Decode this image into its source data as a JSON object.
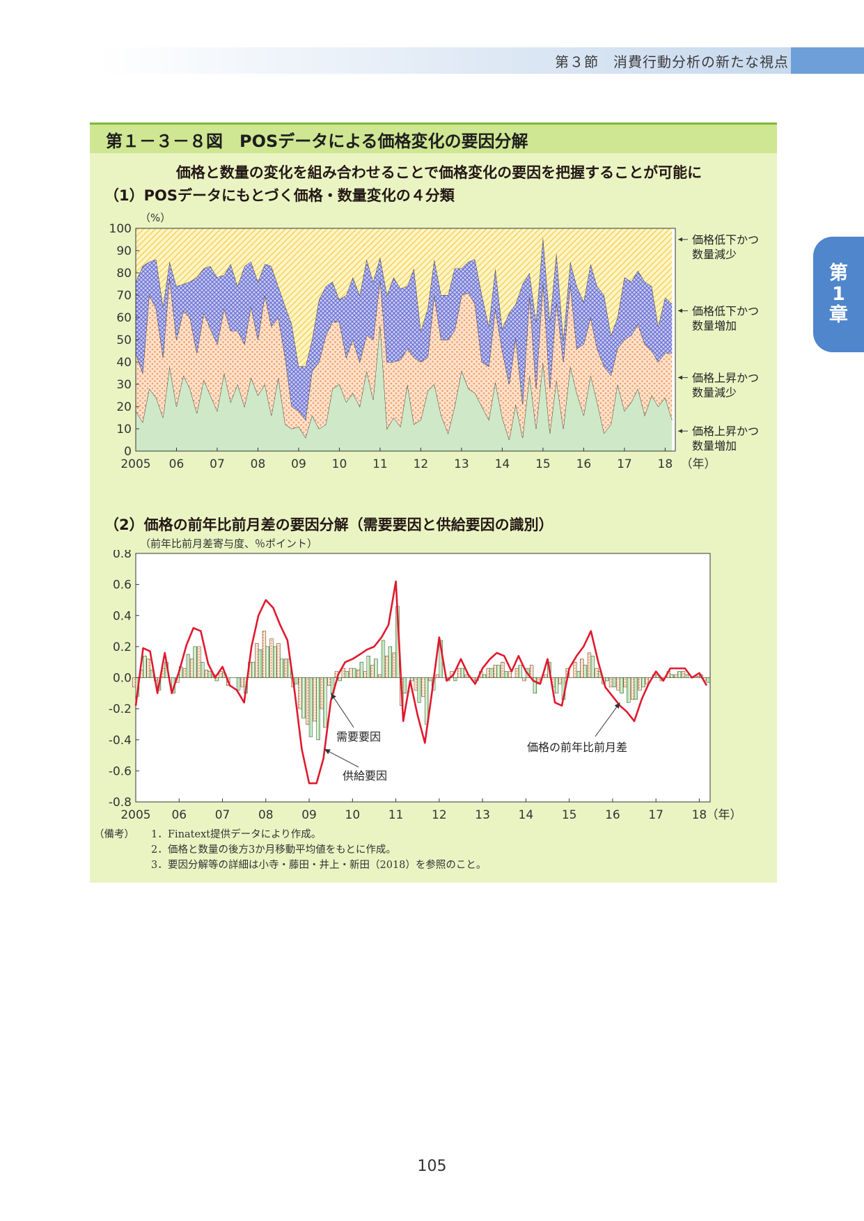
{
  "header": {
    "section": "第３節　消費行動分析の新たな視点"
  },
  "chapter_tab": {
    "line1": "第",
    "line2": "1",
    "line3": "章"
  },
  "figure": {
    "title": "第１－３－８図　POSデータによる価格変化の要因分解",
    "subtitle": "価格と数量の変化を組み合わせることで価格変化の要因を把握することが可能に"
  },
  "colors": {
    "background": "#eaf4c3",
    "title_bar": "#cfe693",
    "band_price_up_qty_up": "#cfe9c8",
    "band_price_up_qty_down": "#f3a36b",
    "band_price_down_qty_up": "#6b6fcf",
    "band_price_down_qty_down": "#f2cc4d",
    "demand_bar": "#f1a06a",
    "supply_bar": "#a8d8a0",
    "line": "#e0182d"
  },
  "chart_data": [
    {
      "type": "area",
      "section_title": "（1）POSデータにもとづく価格・数量変化の４分類",
      "ylabel": "（%）",
      "xlabel": "（年）",
      "ylim": [
        0,
        100
      ],
      "yticks": [
        "0",
        "10",
        "20",
        "30",
        "40",
        "50",
        "60",
        "70",
        "80",
        "90",
        "100"
      ],
      "xticks": [
        "2005",
        "06",
        "07",
        "08",
        "09",
        "10",
        "11",
        "12",
        "13",
        "14",
        "15",
        "16",
        "17",
        "18"
      ],
      "x_start": 2005.0,
      "x_end": 2018.25,
      "legend": [
        {
          "line1": "価格低下かつ",
          "line2": "数量減少",
          "at_value": 95
        },
        {
          "line1": "価格低下かつ",
          "line2": "数量増加",
          "at_value": 63
        },
        {
          "line1": "価格上昇かつ",
          "line2": "数量減少",
          "at_value": 33
        },
        {
          "line1": "価格上昇かつ",
          "line2": "数量増加",
          "at_value": 9
        }
      ],
      "x": [
        2005.0,
        2005.17,
        2005.33,
        2005.5,
        2005.67,
        2005.83,
        2006.0,
        2006.17,
        2006.33,
        2006.5,
        2006.67,
        2006.83,
        2007.0,
        2007.17,
        2007.33,
        2007.5,
        2007.67,
        2007.83,
        2008.0,
        2008.17,
        2008.33,
        2008.5,
        2008.67,
        2008.83,
        2009.0,
        2009.17,
        2009.33,
        2009.5,
        2009.67,
        2009.83,
        2010.0,
        2010.17,
        2010.33,
        2010.5,
        2010.67,
        2010.83,
        2011.0,
        2011.17,
        2011.33,
        2011.5,
        2011.67,
        2011.83,
        2012.0,
        2012.17,
        2012.33,
        2012.5,
        2012.67,
        2012.83,
        2013.0,
        2013.17,
        2013.33,
        2013.5,
        2013.67,
        2013.83,
        2014.0,
        2014.17,
        2014.33,
        2014.5,
        2014.67,
        2014.83,
        2015.0,
        2015.17,
        2015.33,
        2015.5,
        2015.67,
        2015.83,
        2016.0,
        2016.17,
        2016.33,
        2016.5,
        2016.67,
        2016.83,
        2017.0,
        2017.17,
        2017.33,
        2017.5,
        2017.67,
        2017.83,
        2018.0,
        2018.17
      ],
      "series": [
        {
          "name": "価格上昇かつ数量増加",
          "values": [
            18,
            13,
            28,
            24,
            15,
            38,
            20,
            34,
            28,
            17,
            32,
            25,
            18,
            35,
            22,
            30,
            20,
            33,
            25,
            30,
            16,
            33,
            12,
            10,
            11,
            6,
            16,
            10,
            12,
            28,
            30,
            22,
            26,
            20,
            36,
            23,
            57,
            10,
            15,
            11,
            30,
            12,
            14,
            27,
            30,
            16,
            8,
            20,
            36,
            28,
            26,
            20,
            14,
            31,
            15,
            5,
            21,
            6,
            34,
            10,
            40,
            8,
            32,
            10,
            38,
            26,
            16,
            34,
            22,
            8,
            12,
            30,
            18,
            22,
            28,
            16,
            25,
            20,
            24,
            14
          ]
        },
        {
          "name": "価格上昇かつ数量減少",
          "values": [
            26,
            22,
            42,
            40,
            27,
            40,
            30,
            29,
            32,
            27,
            30,
            30,
            30,
            29,
            32,
            24,
            28,
            32,
            25,
            40,
            40,
            27,
            30,
            10,
            7,
            8,
            20,
            30,
            40,
            30,
            28,
            20,
            24,
            20,
            16,
            27,
            20,
            30,
            25,
            30,
            16,
            30,
            26,
            15,
            40,
            34,
            42,
            34,
            34,
            43,
            40,
            20,
            24,
            33,
            30,
            25,
            30,
            15,
            36,
            18,
            36,
            20,
            35,
            30,
            37,
            20,
            32,
            26,
            24,
            30,
            22,
            16,
            32,
            30,
            29,
            32,
            20,
            20,
            20,
            30
          ]
        },
        {
          "name": "価格低下かつ数量増加",
          "values": [
            32,
            48,
            15,
            22,
            23,
            7,
            24,
            12,
            16,
            34,
            20,
            28,
            30,
            15,
            30,
            20,
            35,
            20,
            26,
            14,
            27,
            14,
            23,
            37,
            20,
            24,
            14,
            28,
            22,
            18,
            10,
            28,
            28,
            30,
            34,
            26,
            10,
            30,
            38,
            32,
            28,
            40,
            14,
            22,
            16,
            20,
            20,
            28,
            12,
            14,
            20,
            30,
            18,
            18,
            10,
            32,
            15,
            54,
            10,
            30,
            20,
            30,
            22,
            10,
            10,
            28,
            19,
            24,
            28,
            32,
            18,
            14,
            28,
            24,
            24,
            28,
            29,
            16,
            25,
            22
          ]
        },
        {
          "name": "価格低下かつ数量減少",
          "values": [
            24,
            17,
            15,
            14,
            35,
            15,
            26,
            25,
            24,
            22,
            18,
            17,
            22,
            21,
            16,
            26,
            17,
            15,
            24,
            16,
            17,
            26,
            35,
            43,
            62,
            62,
            50,
            32,
            26,
            24,
            32,
            30,
            22,
            30,
            14,
            24,
            13,
            30,
            22,
            27,
            26,
            18,
            46,
            36,
            14,
            30,
            30,
            18,
            18,
            15,
            14,
            30,
            44,
            18,
            45,
            38,
            34,
            25,
            20,
            42,
            4,
            42,
            11,
            50,
            15,
            26,
            33,
            16,
            26,
            30,
            48,
            40,
            22,
            24,
            19,
            24,
            26,
            44,
            31,
            34
          ]
        }
      ]
    },
    {
      "type": "bar",
      "section_title": "（2）価格の前年比前月差の要因分解（需要要因と供給要因の識別）",
      "ylabel": "（前年比前月差寄与度、％ポイント）",
      "xlabel": "（年）",
      "ylim": [
        -0.8,
        0.8
      ],
      "yticks": [
        "-0.8",
        "-0.6",
        "-0.4",
        "-0.2",
        "0.0",
        "0.2",
        "0.4",
        "0.6",
        "0.8"
      ],
      "xticks": [
        "2005",
        "06",
        "07",
        "08",
        "09",
        "10",
        "11",
        "12",
        "13",
        "14",
        "15",
        "16",
        "17",
        "18"
      ],
      "x_start": 2005.0,
      "x_end": 2018.25,
      "annotations": [
        {
          "text": "需要要因",
          "points_to": "demand"
        },
        {
          "text": "供給要因",
          "points_to": "supply"
        },
        {
          "text": "価格の前年比前月差",
          "points_to": "line"
        }
      ],
      "x": [
        2005.0,
        2005.17,
        2005.33,
        2005.5,
        2005.67,
        2005.83,
        2006.0,
        2006.17,
        2006.33,
        2006.5,
        2006.67,
        2006.83,
        2007.0,
        2007.17,
        2007.33,
        2007.5,
        2007.67,
        2007.83,
        2008.0,
        2008.17,
        2008.33,
        2008.5,
        2008.67,
        2008.83,
        2009.0,
        2009.17,
        2009.33,
        2009.5,
        2009.67,
        2009.83,
        2010.0,
        2010.17,
        2010.33,
        2010.5,
        2010.67,
        2010.83,
        2011.0,
        2011.17,
        2011.33,
        2011.5,
        2011.67,
        2011.83,
        2012.0,
        2012.17,
        2012.33,
        2012.5,
        2012.67,
        2012.83,
        2013.0,
        2013.17,
        2013.33,
        2013.5,
        2013.67,
        2013.83,
        2014.0,
        2014.17,
        2014.33,
        2014.5,
        2014.67,
        2014.83,
        2015.0,
        2015.17,
        2015.33,
        2015.5,
        2015.67,
        2015.83,
        2016.0,
        2016.17,
        2016.33,
        2016.5,
        2016.67,
        2016.83,
        2017.0,
        2017.17,
        2017.33,
        2017.5,
        2017.67,
        2017.83,
        2018.0,
        2018.17
      ],
      "series": [
        {
          "name": "需要要因",
          "values": [
            -0.06,
            0.05,
            0.12,
            -0.02,
            0.06,
            0.0,
            -0.03,
            0.06,
            0.12,
            0.2,
            0.05,
            0.02,
            0.04,
            -0.05,
            0.0,
            -0.06,
            0.1,
            0.22,
            0.3,
            0.25,
            0.22,
            0.12,
            -0.06,
            -0.2,
            -0.3,
            -0.28,
            -0.2,
            -0.05,
            0.04,
            0.06,
            0.06,
            0.05,
            0.04,
            0.08,
            0.02,
            0.14,
            0.16,
            -0.18,
            0.0,
            -0.08,
            -0.12,
            -0.02,
            0.02,
            0.0,
            0.04,
            0.06,
            0.02,
            -0.02,
            0.04,
            0.06,
            0.08,
            0.1,
            0.04,
            0.06,
            -0.02,
            0.08,
            -0.04,
            0.02,
            -0.06,
            -0.04,
            0.06,
            0.1,
            0.12,
            0.16,
            0.06,
            -0.04,
            -0.06,
            -0.08,
            -0.06,
            -0.14,
            -0.08,
            -0.04,
            0.02,
            -0.02,
            0.04,
            0.02,
            0.04,
            0.0,
            0.01,
            -0.02
          ]
        },
        {
          "name": "供給要因",
          "values": [
            -0.12,
            0.14,
            0.05,
            -0.08,
            0.1,
            -0.1,
            0.07,
            0.15,
            0.2,
            0.1,
            0.04,
            -0.02,
            0.03,
            0.0,
            -0.08,
            -0.1,
            0.1,
            0.18,
            0.2,
            0.2,
            0.12,
            0.12,
            -0.04,
            -0.26,
            -0.38,
            -0.4,
            -0.32,
            -0.1,
            -0.02,
            0.04,
            0.06,
            0.1,
            0.14,
            0.12,
            0.24,
            0.2,
            0.46,
            -0.1,
            -0.02,
            -0.16,
            -0.3,
            -0.08,
            0.24,
            -0.02,
            -0.02,
            0.06,
            0.0,
            -0.02,
            0.02,
            0.06,
            0.08,
            0.04,
            0.0,
            0.08,
            0.06,
            -0.1,
            0.0,
            0.1,
            -0.1,
            -0.14,
            0.0,
            0.04,
            0.08,
            0.14,
            0.04,
            -0.02,
            -0.06,
            -0.1,
            -0.16,
            -0.14,
            -0.06,
            0.0,
            0.02,
            0.0,
            0.02,
            0.04,
            0.02,
            0.0,
            0.02,
            -0.03
          ]
        },
        {
          "name": "価格の前年比前月差",
          "values": [
            -0.18,
            0.19,
            0.17,
            -0.1,
            0.16,
            -0.1,
            0.04,
            0.21,
            0.32,
            0.3,
            0.09,
            0.0,
            0.07,
            -0.05,
            -0.08,
            -0.16,
            0.2,
            0.4,
            0.5,
            0.45,
            0.34,
            0.24,
            -0.1,
            -0.46,
            -0.68,
            -0.68,
            -0.52,
            -0.15,
            0.02,
            0.1,
            0.12,
            0.15,
            0.18,
            0.2,
            0.26,
            0.34,
            0.62,
            -0.28,
            -0.02,
            -0.24,
            -0.42,
            -0.1,
            0.26,
            -0.02,
            0.02,
            0.12,
            0.02,
            -0.04,
            0.06,
            0.12,
            0.16,
            0.14,
            0.04,
            0.14,
            0.04,
            -0.02,
            -0.04,
            0.12,
            -0.16,
            -0.18,
            0.06,
            0.14,
            0.2,
            0.3,
            0.1,
            -0.06,
            -0.12,
            -0.18,
            -0.22,
            -0.28,
            -0.14,
            -0.04,
            0.04,
            -0.02,
            0.06,
            0.06,
            0.06,
            0.0,
            0.03,
            -0.05
          ]
        }
      ]
    }
  ],
  "notes": {
    "lead": "（備考）",
    "items": [
      {
        "num": "1．",
        "text": "Finatext提供データにより作成。"
      },
      {
        "num": "2．",
        "text": "価格と数量の後方3か月移動平均値をもとに作成。"
      },
      {
        "num": "3．",
        "text": "要因分解等の詳細は小寺・藤田・井上・新田（2018）を参照のこと。"
      }
    ]
  },
  "page_number": "105"
}
